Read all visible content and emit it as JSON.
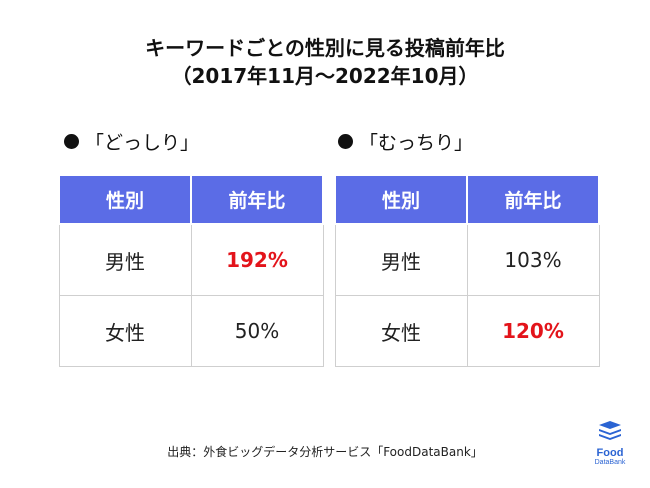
{
  "title": {
    "line1": "キーワードごとの性別に見る投稿前年比",
    "line2": "（2017年11月～2022年10月）"
  },
  "sections": [
    {
      "label": "「どっしり」",
      "headers": [
        "性別",
        "前年比"
      ],
      "rows": [
        {
          "gender": "男性",
          "value": "192%",
          "highlight": true
        },
        {
          "gender": "女性",
          "value": "50%",
          "highlight": false
        }
      ]
    },
    {
      "label": "「むっちり」",
      "headers": [
        "性別",
        "前年比"
      ],
      "rows": [
        {
          "gender": "男性",
          "value": "103%",
          "highlight": false
        },
        {
          "gender": "女性",
          "value": "120%",
          "highlight": true
        }
      ]
    }
  ],
  "source": "出典：外食ビッグデータ分析サービス「FoodDataBank」",
  "logo": {
    "name": "Food",
    "sub": "DataBank",
    "icon": "database-stack-icon"
  },
  "colors": {
    "header_bg": "#5b6ce6",
    "highlight": "#e3141b",
    "logo": "#2b64d3"
  }
}
